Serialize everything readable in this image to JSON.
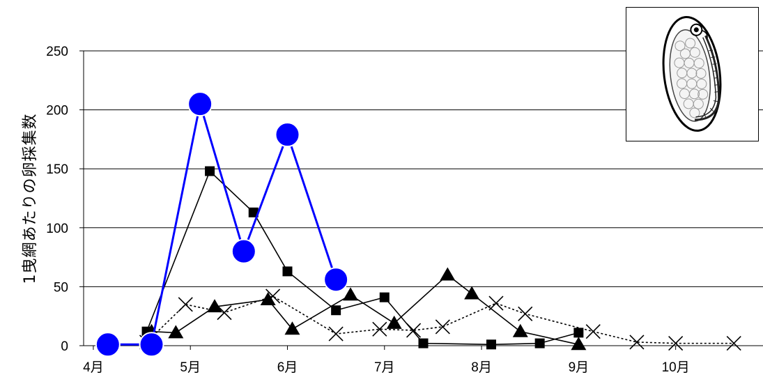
{
  "chart_data": {
    "type": "line",
    "ylabel": "1曳網あたりの卵採集数",
    "xlabel": "",
    "ylim": [
      0,
      250
    ],
    "yticks": [
      0,
      50,
      100,
      150,
      200,
      250
    ],
    "xticks": [
      {
        "label": "4月",
        "x": 4.0
      },
      {
        "label": "5月",
        "x": 5.0
      },
      {
        "label": "6月",
        "x": 6.0
      },
      {
        "label": "7月",
        "x": 7.0
      },
      {
        "label": "8月",
        "x": 8.0
      },
      {
        "label": "9月",
        "x": 9.0
      },
      {
        "label": "10月",
        "x": 10.0
      }
    ],
    "xlim": [
      3.9,
      10.9
    ],
    "grid": "horizontal",
    "series": [
      {
        "marker": "cross",
        "line": "dotted",
        "color": "#000000",
        "points": [
          {
            "x": 4.55,
            "y": 3
          },
          {
            "x": 4.95,
            "y": 35
          },
          {
            "x": 5.35,
            "y": 28
          },
          {
            "x": 5.85,
            "y": 42
          },
          {
            "x": 6.5,
            "y": 10
          },
          {
            "x": 6.95,
            "y": 14
          },
          {
            "x": 7.3,
            "y": 13
          },
          {
            "x": 7.6,
            "y": 16
          },
          {
            "x": 8.15,
            "y": 36
          },
          {
            "x": 8.45,
            "y": 27
          },
          {
            "x": 9.15,
            "y": 12
          },
          {
            "x": 9.6,
            "y": 3
          },
          {
            "x": 10.0,
            "y": 2
          },
          {
            "x": 10.6,
            "y": 2
          }
        ]
      },
      {
        "marker": "triangle",
        "line": "solid",
        "color": "#000000",
        "points": [
          {
            "x": 4.6,
            "y": 12
          },
          {
            "x": 4.85,
            "y": 11
          },
          {
            "x": 5.25,
            "y": 33
          },
          {
            "x": 5.8,
            "y": 39
          },
          {
            "x": 6.05,
            "y": 14
          },
          {
            "x": 6.65,
            "y": 43
          },
          {
            "x": 7.1,
            "y": 19
          },
          {
            "x": 7.65,
            "y": 60
          },
          {
            "x": 7.9,
            "y": 44
          },
          {
            "x": 8.4,
            "y": 12
          },
          {
            "x": 9.0,
            "y": 1
          }
        ]
      },
      {
        "marker": "square",
        "line": "solid",
        "color": "#000000",
        "points": [
          {
            "x": 4.55,
            "y": 12
          },
          {
            "x": 5.2,
            "y": 148
          },
          {
            "x": 5.65,
            "y": 113
          },
          {
            "x": 6.0,
            "y": 63
          },
          {
            "x": 6.5,
            "y": 30
          },
          {
            "x": 7.0,
            "y": 41
          },
          {
            "x": 7.4,
            "y": 2
          },
          {
            "x": 8.1,
            "y": 1
          },
          {
            "x": 8.6,
            "y": 2
          },
          {
            "x": 9.0,
            "y": 11
          }
        ]
      },
      {
        "marker": "circle",
        "line": "solid",
        "color": "#0000ff",
        "points": [
          {
            "x": 4.15,
            "y": 1
          },
          {
            "x": 4.6,
            "y": 1
          },
          {
            "x": 5.1,
            "y": 205
          },
          {
            "x": 5.55,
            "y": 80
          },
          {
            "x": 6.0,
            "y": 179
          },
          {
            "x": 6.5,
            "y": 56
          }
        ]
      }
    ]
  },
  "inset_image": {
    "icon": "fish-egg-illustration",
    "outline_color": "#000000"
  }
}
